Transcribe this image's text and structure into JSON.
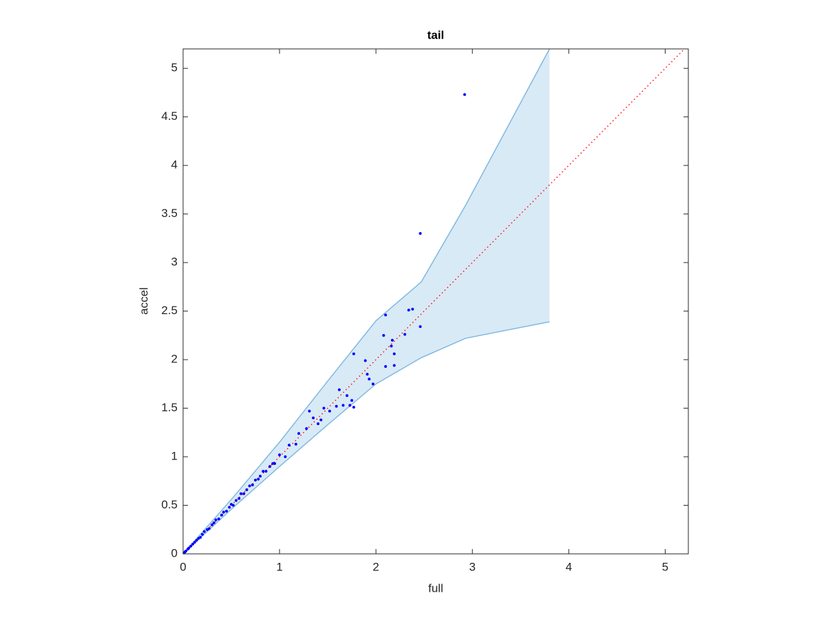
{
  "chart_data": {
    "type": "scatter",
    "title": "tail",
    "x_label": "full",
    "y_label": "accel",
    "xlim": [
      0,
      5.24
    ],
    "ylim": [
      0,
      5.2
    ],
    "xticks": [
      0,
      1,
      2,
      3,
      4,
      5
    ],
    "yticks": [
      0,
      0.5,
      1,
      1.5,
      2,
      2.5,
      3,
      3.5,
      4,
      4.5,
      5
    ],
    "points": {
      "color": "#0000ff",
      "x": [
        0.01,
        0.02,
        0.03,
        0.05,
        0.06,
        0.08,
        0.1,
        0.12,
        0.14,
        0.16,
        0.18,
        0.2,
        0.22,
        0.25,
        0.27,
        0.3,
        0.32,
        0.34,
        0.37,
        0.4,
        0.42,
        0.45,
        0.48,
        0.5,
        0.52,
        0.55,
        0.58,
        0.6,
        0.63,
        0.66,
        0.69,
        0.72,
        0.75,
        0.78,
        0.8,
        0.83,
        0.86,
        0.9,
        0.93,
        0.95,
        1.0,
        1.06,
        1.1,
        1.17,
        1.2,
        1.28,
        1.31,
        1.35,
        1.4,
        1.43,
        1.46,
        1.52,
        1.59,
        1.62,
        1.66,
        1.7,
        1.73,
        1.75,
        1.77,
        1.77,
        1.89,
        1.91,
        1.93,
        1.97,
        2.08,
        2.1,
        2.1,
        2.16,
        2.17,
        2.19,
        2.19,
        2.3,
        2.34,
        2.38,
        2.46,
        2.46,
        2.92
      ],
      "y": [
        0.01,
        0.02,
        0.03,
        0.05,
        0.06,
        0.08,
        0.1,
        0.12,
        0.14,
        0.16,
        0.17,
        0.2,
        0.23,
        0.25,
        0.26,
        0.3,
        0.32,
        0.35,
        0.36,
        0.4,
        0.43,
        0.44,
        0.48,
        0.51,
        0.5,
        0.55,
        0.57,
        0.62,
        0.62,
        0.66,
        0.7,
        0.71,
        0.76,
        0.77,
        0.8,
        0.85,
        0.85,
        0.9,
        0.93,
        0.93,
        1.02,
        1.0,
        1.12,
        1.13,
        1.24,
        1.29,
        1.47,
        1.4,
        1.34,
        1.38,
        1.5,
        1.47,
        1.52,
        1.69,
        1.53,
        1.63,
        1.53,
        1.58,
        1.51,
        2.06,
        1.99,
        1.85,
        1.8,
        1.75,
        2.25,
        2.46,
        1.93,
        2.14,
        2.2,
        2.06,
        1.94,
        2.26,
        2.51,
        2.52,
        3.3,
        2.34,
        4.73
      ]
    },
    "band": {
      "color": "#7fb8e0",
      "x": [
        0,
        0.5,
        1,
        1.5,
        2.0,
        2.47,
        2.93,
        3.8
      ],
      "upper": [
        0,
        0.56,
        1.15,
        1.78,
        2.4,
        2.8,
        3.59,
        5.2
      ],
      "lower": [
        0,
        0.46,
        0.9,
        1.33,
        1.75,
        2.02,
        2.22,
        2.39
      ]
    },
    "reference_line": {
      "color": "#ff0000",
      "x": [
        0,
        5.24
      ],
      "y": [
        0,
        5.24
      ]
    }
  }
}
